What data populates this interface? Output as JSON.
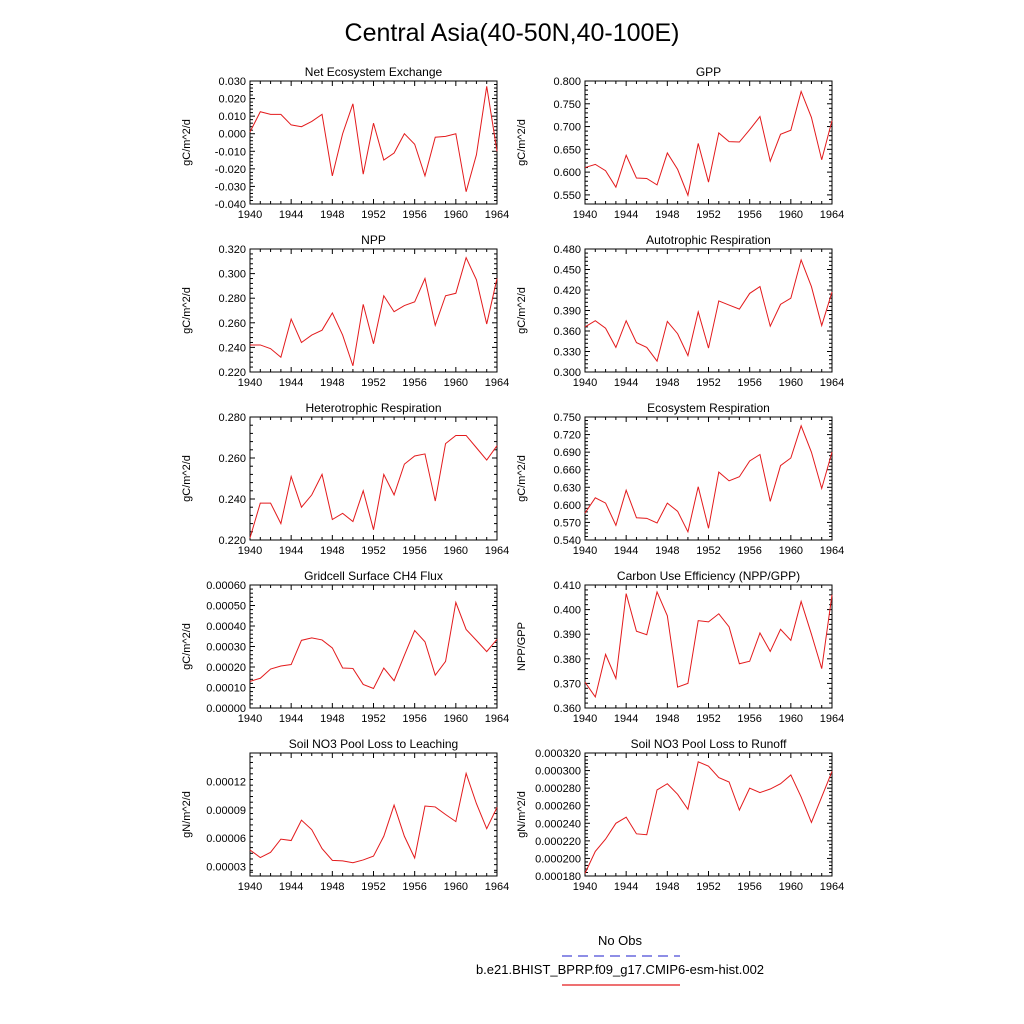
{
  "page_title": "Central Asia(40-50N,40-100E)",
  "legend": {
    "entries": [
      {
        "label": "No Obs",
        "color": "#4b4bd8",
        "style": "dashed"
      },
      {
        "label": "b.e21.BHIST_BPRP.f09_g17.CMIP6-esm-hist.002",
        "color": "#e31a1c",
        "style": "solid"
      }
    ]
  },
  "line_color": "#e31a1c",
  "chart_data": [
    {
      "type": "line",
      "title": "Net Ecosystem Exchange",
      "ylabel": "gC/m^2/d",
      "ylim": [
        -0.04,
        0.03
      ],
      "yticks": [
        -0.04,
        -0.03,
        -0.02,
        -0.01,
        0.0,
        0.01,
        0.02,
        0.03
      ],
      "yticklabels": [
        "-0.040",
        "-0.030",
        "-0.020",
        "-0.010",
        "0.000",
        "0.010",
        "0.020",
        "0.030"
      ],
      "xlim": [
        1940,
        1964
      ],
      "xticks": [
        1940,
        1944,
        1948,
        1952,
        1956,
        1960,
        1964
      ],
      "xticklabels": [
        "1940",
        "1944",
        "1948",
        "1952",
        "1956",
        "1960",
        "1964"
      ],
      "x": [
        1940,
        1941,
        1942,
        1943,
        1944,
        1945,
        1946,
        1947,
        1948,
        1949,
        1950,
        1951,
        1952,
        1953,
        1954,
        1955,
        1956,
        1957,
        1958,
        1959,
        1960,
        1961,
        1962,
        1963,
        1964
      ],
      "series": [
        {
          "values": [
            0.001,
            0.0125,
            0.011,
            0.011,
            0.005,
            0.004,
            0.007,
            0.011,
            -0.024,
            0.0,
            0.017,
            -0.023,
            0.006,
            -0.015,
            -0.011,
            0.0,
            -0.006,
            -0.024,
            -0.002,
            -0.0015,
            0.0,
            -0.033,
            -0.012,
            0.027,
            -0.01
          ]
        }
      ]
    },
    {
      "type": "line",
      "title": "GPP",
      "ylabel": "gC/m^2/d",
      "ylim": [
        0.53,
        0.8
      ],
      "yticks": [
        0.55,
        0.6,
        0.65,
        0.7,
        0.75,
        0.8
      ],
      "yticklabels": [
        "0.550",
        "0.600",
        "0.650",
        "0.700",
        "0.750",
        "0.800"
      ],
      "xlim": [
        1940,
        1964
      ],
      "xticks": [
        1940,
        1944,
        1948,
        1952,
        1956,
        1960,
        1964
      ],
      "xticklabels": [
        "1940",
        "1944",
        "1948",
        "1952",
        "1956",
        "1960",
        "1964"
      ],
      "x": [
        1940,
        1941,
        1942,
        1943,
        1944,
        1945,
        1946,
        1947,
        1948,
        1949,
        1950,
        1951,
        1952,
        1953,
        1954,
        1955,
        1956,
        1957,
        1958,
        1959,
        1960,
        1961,
        1962,
        1963,
        1964
      ],
      "series": [
        {
          "values": [
            0.61,
            0.617,
            0.603,
            0.567,
            0.637,
            0.587,
            0.586,
            0.572,
            0.642,
            0.606,
            0.549,
            0.663,
            0.578,
            0.686,
            0.667,
            0.666,
            0.693,
            0.722,
            0.624,
            0.683,
            0.692,
            0.777,
            0.72,
            0.627,
            0.713
          ]
        }
      ]
    },
    {
      "type": "line",
      "title": "NPP",
      "ylabel": "gC/m^2/d",
      "ylim": [
        0.22,
        0.32
      ],
      "yticks": [
        0.22,
        0.24,
        0.26,
        0.28,
        0.3,
        0.32
      ],
      "yticklabels": [
        "0.220",
        "0.240",
        "0.260",
        "0.280",
        "0.300",
        "0.320"
      ],
      "xlim": [
        1940,
        1964
      ],
      "xticks": [
        1940,
        1944,
        1948,
        1952,
        1956,
        1960,
        1964
      ],
      "xticklabels": [
        "1940",
        "1944",
        "1948",
        "1952",
        "1956",
        "1960",
        "1964"
      ],
      "x": [
        1940,
        1941,
        1942,
        1943,
        1944,
        1945,
        1946,
        1947,
        1948,
        1949,
        1950,
        1951,
        1952,
        1953,
        1954,
        1955,
        1956,
        1957,
        1958,
        1959,
        1960,
        1961,
        1962,
        1963,
        1964
      ],
      "series": [
        {
          "values": [
            0.242,
            0.242,
            0.239,
            0.232,
            0.263,
            0.244,
            0.25,
            0.254,
            0.268,
            0.25,
            0.225,
            0.275,
            0.243,
            0.282,
            0.269,
            0.274,
            0.277,
            0.296,
            0.258,
            0.282,
            0.284,
            0.313,
            0.295,
            0.259,
            0.296
          ]
        }
      ]
    },
    {
      "type": "line",
      "title": "Autotrophic Respiration",
      "ylabel": "gC/m^2/d",
      "ylim": [
        0.3,
        0.48
      ],
      "yticks": [
        0.3,
        0.33,
        0.36,
        0.39,
        0.42,
        0.45,
        0.48
      ],
      "yticklabels": [
        "0.300",
        "0.330",
        "0.360",
        "0.390",
        "0.420",
        "0.450",
        "0.480"
      ],
      "xlim": [
        1940,
        1964
      ],
      "xticks": [
        1940,
        1944,
        1948,
        1952,
        1956,
        1960,
        1964
      ],
      "xticklabels": [
        "1940",
        "1944",
        "1948",
        "1952",
        "1956",
        "1960",
        "1964"
      ],
      "x": [
        1940,
        1941,
        1942,
        1943,
        1944,
        1945,
        1946,
        1947,
        1948,
        1949,
        1950,
        1951,
        1952,
        1953,
        1954,
        1955,
        1956,
        1957,
        1958,
        1959,
        1960,
        1961,
        1962,
        1963,
        1964
      ],
      "series": [
        {
          "values": [
            0.366,
            0.375,
            0.364,
            0.336,
            0.375,
            0.343,
            0.336,
            0.316,
            0.374,
            0.356,
            0.324,
            0.388,
            0.335,
            0.404,
            0.398,
            0.392,
            0.415,
            0.425,
            0.367,
            0.399,
            0.408,
            0.464,
            0.425,
            0.368,
            0.417
          ]
        }
      ]
    },
    {
      "type": "line",
      "title": "Heterotrophic Respiration",
      "ylabel": "gC/m^2/d",
      "ylim": [
        0.22,
        0.28
      ],
      "yticks": [
        0.22,
        0.24,
        0.26,
        0.28
      ],
      "yticklabels": [
        "0.220",
        "0.240",
        "0.260",
        "0.280"
      ],
      "xlim": [
        1940,
        1964
      ],
      "xticks": [
        1940,
        1944,
        1948,
        1952,
        1956,
        1960,
        1964
      ],
      "xticklabels": [
        "1940",
        "1944",
        "1948",
        "1952",
        "1956",
        "1960",
        "1964"
      ],
      "x": [
        1940,
        1941,
        1942,
        1943,
        1944,
        1945,
        1946,
        1947,
        1948,
        1949,
        1950,
        1951,
        1952,
        1953,
        1954,
        1955,
        1956,
        1957,
        1958,
        1959,
        1960,
        1961,
        1962,
        1963,
        1964
      ],
      "series": [
        {
          "values": [
            0.221,
            0.238,
            0.238,
            0.228,
            0.251,
            0.236,
            0.242,
            0.252,
            0.23,
            0.233,
            0.229,
            0.244,
            0.225,
            0.252,
            0.242,
            0.257,
            0.261,
            0.262,
            0.239,
            0.267,
            0.271,
            0.271,
            0.265,
            0.259,
            0.266
          ]
        }
      ]
    },
    {
      "type": "line",
      "title": "Ecosystem Respiration",
      "ylabel": "gC/m^2/d",
      "ylim": [
        0.54,
        0.75
      ],
      "yticks": [
        0.54,
        0.57,
        0.6,
        0.63,
        0.66,
        0.69,
        0.72,
        0.75
      ],
      "yticklabels": [
        "0.540",
        "0.570",
        "0.600",
        "0.630",
        "0.660",
        "0.690",
        "0.720",
        "0.750"
      ],
      "xlim": [
        1940,
        1964
      ],
      "xticks": [
        1940,
        1944,
        1948,
        1952,
        1956,
        1960,
        1964
      ],
      "xticklabels": [
        "1940",
        "1944",
        "1948",
        "1952",
        "1956",
        "1960",
        "1964"
      ],
      "x": [
        1940,
        1941,
        1942,
        1943,
        1944,
        1945,
        1946,
        1947,
        1948,
        1949,
        1950,
        1951,
        1952,
        1953,
        1954,
        1955,
        1956,
        1957,
        1958,
        1959,
        1960,
        1961,
        1962,
        1963,
        1964
      ],
      "series": [
        {
          "values": [
            0.586,
            0.612,
            0.603,
            0.565,
            0.625,
            0.578,
            0.577,
            0.569,
            0.603,
            0.589,
            0.554,
            0.631,
            0.56,
            0.656,
            0.641,
            0.648,
            0.675,
            0.686,
            0.606,
            0.667,
            0.68,
            0.735,
            0.69,
            0.628,
            0.69
          ]
        }
      ]
    },
    {
      "type": "line",
      "title": "Gridcell Surface CH4 Flux",
      "ylabel": "gC/m^2/d",
      "ylim": [
        0.0,
        0.0006
      ],
      "yticks": [
        0.0,
        0.0001,
        0.0002,
        0.0003,
        0.0004,
        0.0005,
        0.0006
      ],
      "yticklabels": [
        "0.00000",
        "0.00010",
        "0.00020",
        "0.00030",
        "0.00040",
        "0.00050",
        "0.00060"
      ],
      "xlim": [
        1940,
        1964
      ],
      "xticks": [
        1940,
        1944,
        1948,
        1952,
        1956,
        1960,
        1964
      ],
      "xticklabels": [
        "1940",
        "1944",
        "1948",
        "1952",
        "1956",
        "1960",
        "1964"
      ],
      "x": [
        1940,
        1941,
        1942,
        1943,
        1944,
        1945,
        1946,
        1947,
        1948,
        1949,
        1950,
        1951,
        1952,
        1953,
        1954,
        1955,
        1956,
        1957,
        1958,
        1959,
        1960,
        1961,
        1962,
        1963,
        1964
      ],
      "series": [
        {
          "values": [
            0.00013,
            0.000145,
            0.00019,
            0.000205,
            0.000212,
            0.00033,
            0.000342,
            0.000332,
            0.000293,
            0.000195,
            0.000193,
            0.000115,
            9.5e-05,
            0.000195,
            0.000133,
            0.000257,
            0.000378,
            0.000323,
            0.00016,
            0.000227,
            0.000515,
            0.000383,
            0.00033,
            0.000275,
            0.000335
          ]
        }
      ]
    },
    {
      "type": "line",
      "title": "Carbon Use Efficiency (NPP/GPP)",
      "ylabel": "NPP/GPP",
      "ylim": [
        0.36,
        0.41
      ],
      "yticks": [
        0.36,
        0.37,
        0.38,
        0.39,
        0.4,
        0.41
      ],
      "yticklabels": [
        "0.360",
        "0.370",
        "0.380",
        "0.390",
        "0.400",
        "0.410"
      ],
      "xlim": [
        1940,
        1964
      ],
      "xticks": [
        1940,
        1944,
        1948,
        1952,
        1956,
        1960,
        1964
      ],
      "xticklabels": [
        "1940",
        "1944",
        "1948",
        "1952",
        "1956",
        "1960",
        "1964"
      ],
      "x": [
        1940,
        1941,
        1942,
        1943,
        1944,
        1945,
        1946,
        1947,
        1948,
        1949,
        1950,
        1951,
        1952,
        1953,
        1954,
        1955,
        1956,
        1957,
        1958,
        1959,
        1960,
        1961,
        1962,
        1963,
        1964
      ],
      "series": [
        {
          "values": [
            0.3705,
            0.3645,
            0.3818,
            0.372,
            0.4065,
            0.3912,
            0.3898,
            0.4072,
            0.3975,
            0.3685,
            0.37,
            0.3955,
            0.395,
            0.3983,
            0.393,
            0.378,
            0.379,
            0.3905,
            0.383,
            0.392,
            0.3875,
            0.4033,
            0.39,
            0.376,
            0.406
          ]
        }
      ]
    },
    {
      "type": "line",
      "title": "Soil NO3 Pool Loss to Leaching",
      "ylabel": "gN/m^2/d",
      "ylim": [
        2e-05,
        0.00015
      ],
      "yticks": [
        3e-05,
        6e-05,
        9e-05,
        0.00012
      ],
      "yticklabels": [
        "0.00003",
        "0.00006",
        "0.00009",
        "0.00012"
      ],
      "xlim": [
        1940,
        1964
      ],
      "xticks": [
        1940,
        1944,
        1948,
        1952,
        1956,
        1960,
        1964
      ],
      "xticklabels": [
        "1940",
        "1944",
        "1948",
        "1952",
        "1956",
        "1960",
        "1964"
      ],
      "x": [
        1940,
        1941,
        1942,
        1943,
        1944,
        1945,
        1946,
        1947,
        1948,
        1949,
        1950,
        1951,
        1952,
        1953,
        1954,
        1955,
        1956,
        1957,
        1958,
        1959,
        1960,
        1961,
        1962,
        1963,
        1964
      ],
      "series": [
        {
          "values": [
            4.75e-05,
            3.95e-05,
            4.5e-05,
            5.9e-05,
            5.75e-05,
            7.9e-05,
            6.9e-05,
            4.9e-05,
            3.65e-05,
            3.6e-05,
            3.4e-05,
            3.7e-05,
            4.1e-05,
            6.2e-05,
            9.5e-05,
            6.2e-05,
            3.9e-05,
            9.4e-05,
            9.3e-05,
            8.5e-05,
            7.75e-05,
            0.0001285,
            9.65e-05,
            7e-05,
            9.25e-05
          ]
        }
      ]
    },
    {
      "type": "line",
      "title": "Soil NO3 Pool Loss to Runoff",
      "ylabel": "gN/m^2/d",
      "ylim": [
        0.00018,
        0.00032
      ],
      "yticks": [
        0.00018,
        0.0002,
        0.00022,
        0.00024,
        0.00026,
        0.00028,
        0.0003,
        0.00032
      ],
      "yticklabels": [
        "0.000180",
        "0.000200",
        "0.000220",
        "0.000240",
        "0.000260",
        "0.000280",
        "0.000300",
        "0.000320"
      ],
      "xlim": [
        1940,
        1964
      ],
      "xticks": [
        1940,
        1944,
        1948,
        1952,
        1956,
        1960,
        1964
      ],
      "xticklabels": [
        "1940",
        "1944",
        "1948",
        "1952",
        "1956",
        "1960",
        "1964"
      ],
      "x": [
        1940,
        1941,
        1942,
        1943,
        1944,
        1945,
        1946,
        1947,
        1948,
        1949,
        1950,
        1951,
        1952,
        1953,
        1954,
        1955,
        1956,
        1957,
        1958,
        1959,
        1960,
        1961,
        1962,
        1963,
        1964
      ],
      "series": [
        {
          "values": [
            0.000183,
            0.000208,
            0.000222,
            0.00024,
            0.000247,
            0.000228,
            0.000227,
            0.000278,
            0.000285,
            0.000273,
            0.000256,
            0.00031,
            0.000305,
            0.000292,
            0.000287,
            0.000255,
            0.00028,
            0.000275,
            0.000279,
            0.000285,
            0.000295,
            0.00027,
            0.000241,
            0.00027,
            0.000299
          ]
        }
      ]
    }
  ]
}
